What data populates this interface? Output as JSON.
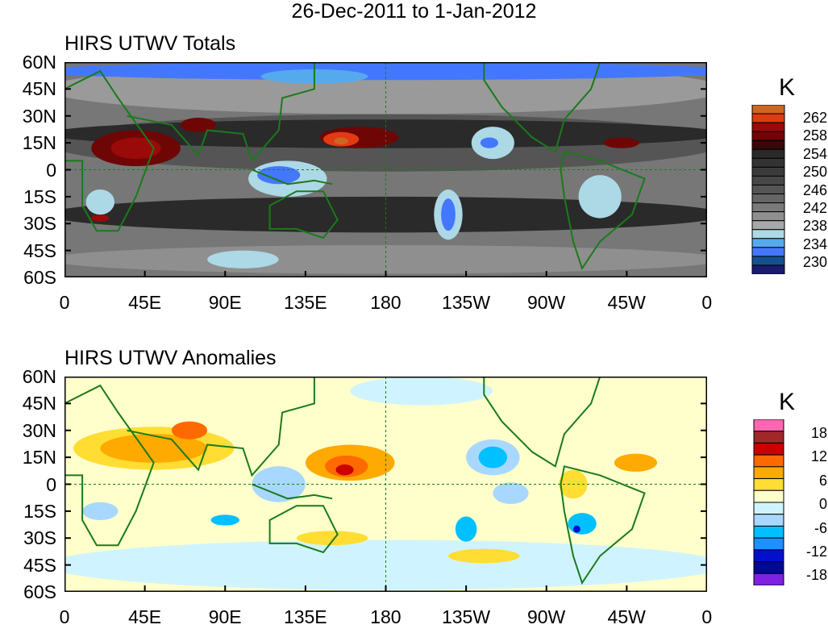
{
  "title": "26-Dec-2011 to 1-Jan-2012",
  "y_ticks": [
    "60N",
    "45N",
    "30N",
    "15N",
    "0",
    "15S",
    "30S",
    "45S",
    "60S"
  ],
  "x_ticks": [
    "0",
    "45E",
    "90E",
    "135E",
    "180",
    "135W",
    "90W",
    "45W",
    "0"
  ],
  "panels": [
    {
      "title": "HIRS UTWV Totals",
      "colorbar": {
        "unit": "K",
        "labels": [
          "262",
          "258",
          "254",
          "250",
          "246",
          "242",
          "238",
          "234",
          "230"
        ],
        "colors": [
          "#cc6622",
          "#e23a12",
          "#9a0a0a",
          "#6e0606",
          "#3a0808",
          "#2a2a2a",
          "#333333",
          "#3b3b3b",
          "#474747",
          "#555555",
          "#666666",
          "#7a7a7a",
          "#8f8f8f",
          "#a8a8a8",
          "#add8e6",
          "#55aaee",
          "#4477ff",
          "#145090",
          "#1a1a70"
        ]
      }
    },
    {
      "title": "HIRS UTWV Anomalies",
      "colorbar": {
        "unit": "K",
        "labels": [
          "18",
          "12",
          "6",
          "0",
          "-6",
          "-12",
          "-18"
        ],
        "colors": [
          "#ff66b2",
          "#a02828",
          "#cc0000",
          "#ff6a00",
          "#ffaa00",
          "#ffdd33",
          "#ffffcc",
          "#d0f4ff",
          "#a8d8ff",
          "#00c0ff",
          "#1e90ff",
          "#0010cc",
          "#000a90",
          "#8020e0"
        ]
      }
    }
  ]
}
